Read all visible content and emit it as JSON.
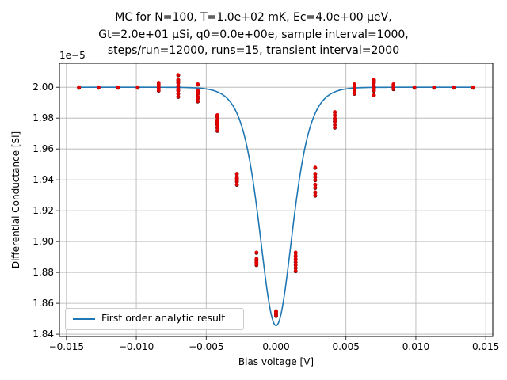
{
  "chart_data": {
    "type": "scatter",
    "title_lines": [
      "MC for N=100, T=1.0e+02 mK, Ec=4.0e+00 μeV,",
      "Gt=2.0e+01 μSi, q0=0.0e+00e, sample interval=1000,",
      "steps/run=12000, runs=15, transient interval=2000"
    ],
    "xlabel": "Bias voltage [V]",
    "ylabel": "Differential Conductance [Si]",
    "y_offset_label": "1e−5",
    "xlim": [
      -0.0155,
      0.0155
    ],
    "ylim": [
      1.8385,
      2.0155
    ],
    "x_ticks": [
      -0.015,
      -0.01,
      -0.005,
      0.0,
      0.005,
      0.01,
      0.015
    ],
    "x_tick_labels": [
      "−0.015",
      "−0.010",
      "−0.005",
      "0.000",
      "0.005",
      "0.010",
      "0.015"
    ],
    "y_ticks": [
      1.84,
      1.86,
      1.88,
      1.9,
      1.92,
      1.94,
      1.96,
      1.98,
      2.0
    ],
    "y_tick_labels": [
      "1.84",
      "1.86",
      "1.88",
      "1.90",
      "1.92",
      "1.94",
      "1.96",
      "1.98",
      "2.00"
    ],
    "grid": true,
    "legend_position": "lower-left",
    "series": [
      {
        "name": "First order analytic result",
        "style": "line",
        "color": "#1f77b4",
        "model": {
          "g0": 2.0,
          "dip": 0.1545,
          "width_v": 0.00158
        }
      },
      {
        "style": "points",
        "color": "#e00000",
        "dark_color": "#3a0000",
        "points": [
          [
            -0.0141,
            2.0
          ],
          [
            -0.0141,
            2.0
          ],
          [
            -0.0141,
            2.0
          ],
          [
            -0.0127,
            2.0
          ],
          [
            -0.0127,
            2.0
          ],
          [
            -0.0113,
            2.0
          ],
          [
            -0.0113,
            2.0
          ],
          [
            -0.0099,
            2.0
          ],
          [
            -0.0099,
            2.0
          ],
          [
            -0.0084,
            2.003
          ],
          [
            -0.0084,
            2.001
          ],
          [
            -0.0084,
            2.0
          ],
          [
            -0.0084,
            1.999
          ],
          [
            -0.0084,
            1.998
          ],
          [
            -0.0084,
            2.002
          ],
          [
            -0.007,
            2.008
          ],
          [
            -0.007,
            2.004
          ],
          [
            -0.007,
            2.003
          ],
          [
            -0.007,
            2.001
          ],
          [
            -0.007,
            1.999
          ],
          [
            -0.007,
            1.998
          ],
          [
            -0.007,
            1.996
          ],
          [
            -0.007,
            1.994
          ],
          [
            -0.007,
            2.005
          ],
          [
            -0.0056,
            2.002
          ],
          [
            -0.0056,
            1.998
          ],
          [
            -0.0056,
            1.997
          ],
          [
            -0.0056,
            1.996
          ],
          [
            -0.0056,
            1.994
          ],
          [
            -0.0056,
            1.993
          ],
          [
            -0.0056,
            1.991
          ],
          [
            -0.0042,
            1.982
          ],
          [
            -0.0042,
            1.981
          ],
          [
            -0.0042,
            1.979
          ],
          [
            -0.0042,
            1.978
          ],
          [
            -0.0042,
            1.977
          ],
          [
            -0.0042,
            1.976
          ],
          [
            -0.0042,
            1.974
          ],
          [
            -0.0042,
            1.972
          ],
          [
            -0.0028,
            1.944
          ],
          [
            -0.0028,
            1.942
          ],
          [
            -0.0028,
            1.941
          ],
          [
            -0.0028,
            1.94
          ],
          [
            -0.0028,
            1.939
          ],
          [
            -0.0028,
            1.937
          ],
          [
            -0.0014,
            1.893
          ],
          [
            -0.0014,
            1.889
          ],
          [
            -0.0014,
            1.888
          ],
          [
            -0.0014,
            1.887
          ],
          [
            -0.0014,
            1.886
          ],
          [
            -0.0014,
            1.885
          ],
          [
            0.0,
            1.855
          ],
          [
            0.0,
            1.854
          ],
          [
            0.0,
            1.853
          ],
          [
            0.0,
            1.852
          ],
          [
            0.0014,
            1.893
          ],
          [
            0.0014,
            1.891
          ],
          [
            0.0014,
            1.889
          ],
          [
            0.0014,
            1.887
          ],
          [
            0.0014,
            1.885
          ],
          [
            0.0014,
            1.883
          ],
          [
            0.0014,
            1.881
          ],
          [
            0.0028,
            1.948
          ],
          [
            0.0028,
            1.944
          ],
          [
            0.0028,
            1.942
          ],
          [
            0.0028,
            1.94
          ],
          [
            0.0028,
            1.937
          ],
          [
            0.0028,
            1.935
          ],
          [
            0.0028,
            1.932
          ],
          [
            0.0028,
            1.93
          ],
          [
            0.0042,
            1.984
          ],
          [
            0.0042,
            1.982
          ],
          [
            0.0042,
            1.98
          ],
          [
            0.0042,
            1.979
          ],
          [
            0.0042,
            1.978
          ],
          [
            0.0042,
            1.976
          ],
          [
            0.0042,
            1.974
          ],
          [
            0.0056,
            2.002
          ],
          [
            0.0056,
            2.001
          ],
          [
            0.0056,
            2.0
          ],
          [
            0.0056,
            1.999
          ],
          [
            0.0056,
            1.998
          ],
          [
            0.0056,
            1.997
          ],
          [
            0.0056,
            1.996
          ],
          [
            0.007,
            2.005
          ],
          [
            0.007,
            2.004
          ],
          [
            0.007,
            2.003
          ],
          [
            0.007,
            2.001
          ],
          [
            0.007,
            2.0
          ],
          [
            0.007,
            1.999
          ],
          [
            0.007,
            1.998
          ],
          [
            0.007,
            1.995
          ],
          [
            0.0084,
            2.002
          ],
          [
            0.0084,
            2.001
          ],
          [
            0.0084,
            2.0
          ],
          [
            0.0084,
            1.999
          ],
          [
            0.0099,
            2.0
          ],
          [
            0.0099,
            2.0
          ],
          [
            0.0113,
            2.0
          ],
          [
            0.0113,
            2.0
          ],
          [
            0.0127,
            2.0
          ],
          [
            0.0127,
            2.0
          ],
          [
            0.0141,
            2.0
          ],
          [
            0.0141,
            2.0
          ]
        ]
      }
    ]
  }
}
